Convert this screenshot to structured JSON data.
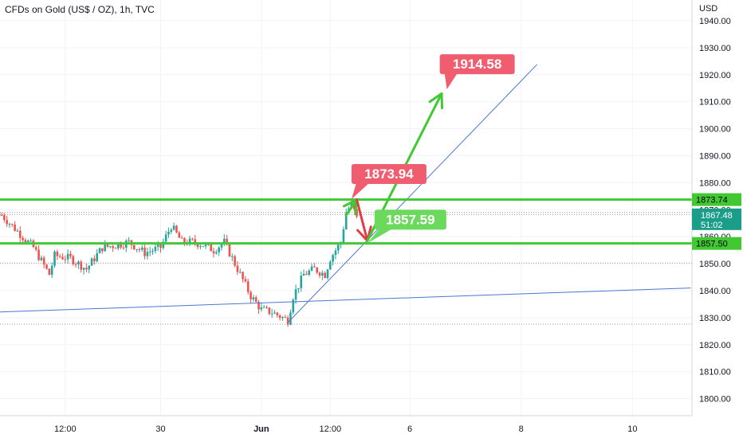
{
  "header": {
    "title": "CFDs on Gold (US$ / OZ), 1h, TVC"
  },
  "axis": {
    "unit": "USD"
  },
  "chart_data": {
    "type": "candlestick",
    "y_axis": {
      "range": [
        1792,
        1945
      ],
      "ticks": [
        "1940.00",
        "1930.00",
        "1920.00",
        "1910.00",
        "1900.00",
        "1890.00",
        "1880.00",
        "1870.00",
        "1860.00",
        "1850.00",
        "1840.00",
        "1830.00",
        "1820.00",
        "1810.00",
        "1800.00"
      ],
      "tick_values": [
        1940,
        1930,
        1920,
        1910,
        1900,
        1890,
        1880,
        1870,
        1860,
        1850,
        1840,
        1830,
        1820,
        1810,
        1800
      ]
    },
    "x_axis": {
      "labels": [
        "12:00",
        "30",
        "Jun",
        "12:00",
        "6",
        "8",
        "10"
      ],
      "label_positions_bars": [
        12,
        30,
        49,
        62,
        77,
        98,
        119
      ]
    },
    "bar_count": 126,
    "price_path": [
      [
        0,
        1868
      ],
      [
        3,
        1862
      ],
      [
        6,
        1856
      ],
      [
        9,
        1846
      ],
      [
        10,
        1853
      ],
      [
        13,
        1852
      ],
      [
        16,
        1848
      ],
      [
        19,
        1856
      ],
      [
        22,
        1857
      ],
      [
        24,
        1858
      ],
      [
        27,
        1854
      ],
      [
        30,
        1856
      ],
      [
        32,
        1864
      ],
      [
        34,
        1858
      ],
      [
        36,
        1858
      ],
      [
        38,
        1857
      ],
      [
        40,
        1855
      ],
      [
        42,
        1858
      ],
      [
        44,
        1850
      ],
      [
        47,
        1838
      ],
      [
        49,
        1833
      ],
      [
        51,
        1832
      ],
      [
        53,
        1830
      ],
      [
        54,
        1829
      ],
      [
        55,
        1838
      ],
      [
        57,
        1846
      ],
      [
        59,
        1848
      ],
      [
        61,
        1846
      ],
      [
        62,
        1852
      ],
      [
        64,
        1858
      ],
      [
        65,
        1869
      ],
      [
        66,
        1872
      ],
      [
        67,
        1867
      ]
    ],
    "price_levels": [
      {
        "value": 1873.74,
        "label": "1873.74",
        "color": "#41c833"
      },
      {
        "value": 1857.5,
        "label": "1857.50",
        "color": "#41c833"
      }
    ],
    "current_price": {
      "value": 1867.48,
      "label": "1867.48",
      "countdown": "51:02",
      "color": "#1a9e89"
    },
    "dotted_levels": [
      1869.0,
      1868.2,
      1850.2,
      1827.6
    ],
    "trendlines": [
      {
        "from": [
          -2,
          1832.0
        ],
        "to": [
          130,
          1841.0
        ],
        "color": "#4a76d0"
      },
      {
        "from": [
          54,
          1828.2
        ],
        "to": [
          101,
          1923.8
        ],
        "color": "#4a76d0"
      }
    ],
    "annotations": [
      {
        "label": "1873.94",
        "color": "#f05d6f",
        "at": [
          66,
          1873.94
        ]
      },
      {
        "label": "1857.59",
        "color": "#6bd95b",
        "at": [
          69,
          1857.59
        ]
      },
      {
        "label": "1914.58",
        "color": "#f05d6f",
        "at": [
          84,
          1914.58
        ]
      }
    ],
    "arrows": [
      {
        "from": [
          65,
          1868
        ],
        "to": [
          67,
          1873.7
        ],
        "color": "#41c833"
      },
      {
        "from": [
          67,
          1873.7
        ],
        "to": [
          69,
          1858.5
        ],
        "color": "#e23d47"
      },
      {
        "from": [
          69,
          1858.5
        ],
        "to": [
          83,
          1913
        ],
        "color": "#41c833"
      }
    ]
  }
}
